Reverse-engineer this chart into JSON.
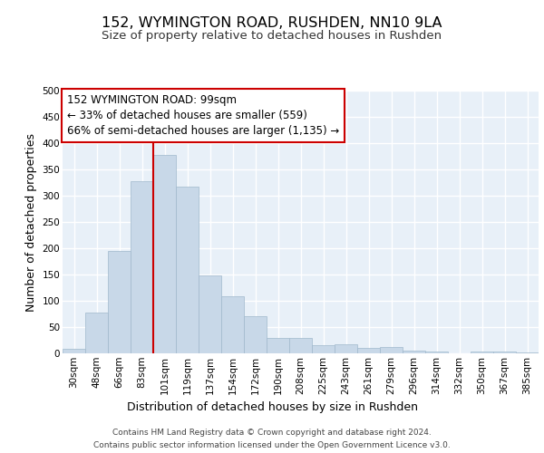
{
  "title_line1": "152, WYMINGTON ROAD, RUSHDEN, NN10 9LA",
  "title_line2": "Size of property relative to detached houses in Rushden",
  "xlabel": "Distribution of detached houses by size in Rushden",
  "ylabel": "Number of detached properties",
  "categories": [
    "30sqm",
    "48sqm",
    "66sqm",
    "83sqm",
    "101sqm",
    "119sqm",
    "137sqm",
    "154sqm",
    "172sqm",
    "190sqm",
    "208sqm",
    "225sqm",
    "243sqm",
    "261sqm",
    "279sqm",
    "296sqm",
    "314sqm",
    "332sqm",
    "350sqm",
    "367sqm",
    "385sqm"
  ],
  "bar_heights": [
    8,
    78,
    195,
    328,
    378,
    318,
    148,
    108,
    70,
    30,
    30,
    15,
    18,
    10,
    12,
    5,
    3,
    0,
    3,
    3,
    2
  ],
  "bar_color": "#c8d8e8",
  "bar_edge_color": "#a0b8cc",
  "vline_x_index": 4,
  "vline_color": "#cc0000",
  "annotation_text": "152 WYMINGTON ROAD: 99sqm\n← 33% of detached houses are smaller (559)\n66% of semi-detached houses are larger (1,135) →",
  "annotation_box_color": "#ffffff",
  "annotation_box_edge_color": "#cc0000",
  "ylim": [
    0,
    500
  ],
  "yticks": [
    0,
    50,
    100,
    150,
    200,
    250,
    300,
    350,
    400,
    450,
    500
  ],
  "background_color": "#e8f0f8",
  "grid_color": "#ffffff",
  "footer_line1": "Contains HM Land Registry data © Crown copyright and database right 2024.",
  "footer_line2": "Contains public sector information licensed under the Open Government Licence v3.0.",
  "title_fontsize": 11.5,
  "subtitle_fontsize": 9.5,
  "ylabel_fontsize": 9,
  "xlabel_fontsize": 9,
  "tick_fontsize": 7.5,
  "annotation_fontsize": 8.5,
  "footer_fontsize": 6.5
}
